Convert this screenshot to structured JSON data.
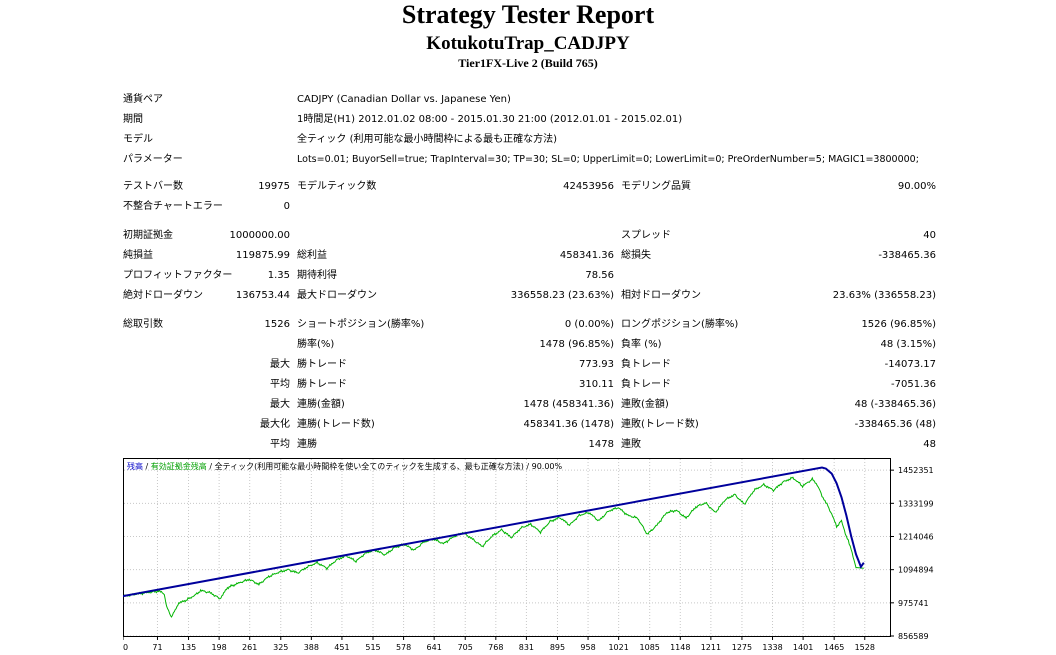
{
  "report": {
    "title": "Strategy Tester Report",
    "subtitle": "KotukotuTrap_CADJPY",
    "server": "Tier1FX-Live 2 (Build 765)"
  },
  "info": {
    "pair_label": "通貨ペア",
    "pair_value": "CADJPY (Canadian Dollar vs. Japanese Yen)",
    "period_label": "期間",
    "period_value": "1時間足(H1) 2012.01.02 08:00 - 2015.01.30 21:00 (2012.01.01 - 2015.02.01)",
    "model_label": "モデル",
    "model_value": "全ティック (利用可能な最小時間枠による最も正確な方法)",
    "params_label": "パラメーター",
    "params_value": "Lots=0.01; BuyorSell=true; TrapInterval=30; TP=30; SL=0; UpperLimit=0; LowerLimit=0; PreOrderNumber=5; MAGIC1=3800000;"
  },
  "bars": {
    "testbars_label": "テストバー数",
    "testbars_value": "19975",
    "ticks_label": "モデルティック数",
    "ticks_value": "42453956",
    "quality_label": "モデリング品質",
    "quality_value": "90.00%",
    "mismatch_label": "不整合チャートエラー",
    "mismatch_value": "0"
  },
  "stats": {
    "deposit_label": "初期証拠金",
    "deposit_value": "1000000.00",
    "spread_label": "スプレッド",
    "spread_value": "40",
    "net_label": "純損益",
    "net_value": "119875.99",
    "gross_profit_label": "総利益",
    "gross_profit_value": "458341.36",
    "gross_loss_label": "総損失",
    "gross_loss_value": "-338465.36",
    "pf_label": "プロフィットファクター",
    "pf_value": "1.35",
    "expected_label": "期待利得",
    "expected_value": "78.56",
    "abs_dd_label": "絶対ドローダウン",
    "abs_dd_value": "136753.44",
    "max_dd_label": "最大ドローダウン",
    "max_dd_value": "336558.23 (23.63%)",
    "rel_dd_label": "相対ドローダウン",
    "rel_dd_value": "23.63% (336558.23)"
  },
  "trades": {
    "total_label": "総取引数",
    "total_value": "1526",
    "short_label": "ショートポジション(勝率%)",
    "short_value": "0 (0.00%)",
    "long_label": "ロングポジション(勝率%)",
    "long_value": "1526 (96.85%)",
    "win_pct_label": "勝率(%)",
    "win_pct_value": "1478 (96.85%)",
    "loss_pct_label": "負率 (%)",
    "loss_pct_value": "48 (3.15%)",
    "largest_label": "最大",
    "largest_win_label": "勝トレード",
    "largest_win_value": "773.93",
    "largest_loss_label": "負トレード",
    "largest_loss_value": "-14073.17",
    "average_label": "平均",
    "avg_win_label": "勝トレード",
    "avg_win_value": "310.11",
    "avg_loss_label": "負トレード",
    "avg_loss_value": "-7051.36",
    "max_label": "最大",
    "max_cons_wins_label": "連勝(金額)",
    "max_cons_wins_value": "1478 (458341.36)",
    "max_cons_losses_label": "連敗(金額)",
    "max_cons_losses_value": "48 (-338465.36)",
    "maximal_label": "最大化",
    "maximal_wins_label": "連勝(トレード数)",
    "maximal_wins_value": "458341.36 (1478)",
    "maximal_losses_label": "連敗(トレード数)",
    "maximal_losses_value": "-338465.36 (48)",
    "avg_cons_label": "平均",
    "avg_cons_wins_label": "連勝",
    "avg_cons_wins_value": "1478",
    "avg_cons_losses_label": "連敗",
    "avg_cons_losses_value": "48"
  },
  "chart_data": {
    "type": "line",
    "legend_balance": "残高",
    "legend_sep1": " / ",
    "legend_equity": "有効証拠金残高",
    "legend_rest": " / 全ティック(利用可能な最小時間枠を使い全てのティックを生成する、最も正確な方法) / 90.00%",
    "colors": {
      "balance": "#00009C",
      "equity": "#00B400",
      "legend_balance": "#0000C8",
      "legend_equity": "#00A000",
      "grid": "#c8c8c8"
    },
    "x_ticks": [
      "0",
      "71",
      "135",
      "198",
      "261",
      "325",
      "388",
      "451",
      "515",
      "578",
      "641",
      "705",
      "768",
      "831",
      "895",
      "958",
      "1021",
      "1085",
      "1148",
      "1211",
      "1275",
      "1338",
      "1401",
      "1465",
      "1528"
    ],
    "y_ticks": [
      "1452351",
      "1333199",
      "1214046",
      "1094894",
      "975741",
      "856589"
    ],
    "xlim": [
      0,
      1580
    ],
    "ylim": [
      856589,
      1496000
    ],
    "grid": true,
    "series": [
      {
        "role": "balance",
        "x": [
          0,
          1440,
          1448,
          1460,
          1470,
          1480,
          1490,
          1500,
          1510,
          1520,
          1526
        ],
        "y": [
          1000000,
          1462000,
          1458000,
          1440000,
          1405000,
          1355000,
          1290000,
          1215000,
          1150000,
          1105000,
          1119876
        ]
      },
      {
        "role": "equity",
        "x": [
          0,
          40,
          75,
          85,
          90,
          100,
          115,
          130,
          150,
          160,
          180,
          200,
          215,
          240,
          260,
          280,
          300,
          320,
          340,
          360,
          380,
          400,
          420,
          440,
          460,
          480,
          500,
          520,
          540,
          560,
          580,
          600,
          620,
          640,
          660,
          680,
          700,
          720,
          740,
          760,
          780,
          800,
          820,
          840,
          860,
          880,
          900,
          920,
          940,
          960,
          980,
          1000,
          1020,
          1040,
          1060,
          1080,
          1100,
          1120,
          1140,
          1160,
          1180,
          1200,
          1220,
          1240,
          1260,
          1280,
          1300,
          1320,
          1340,
          1360,
          1380,
          1400,
          1420,
          1430,
          1440,
          1450,
          1460,
          1470,
          1480,
          1490,
          1500,
          1510,
          1515,
          1520,
          1526
        ],
        "y": [
          1000000,
          1010000,
          1018000,
          1008000,
          960000,
          925000,
          975000,
          985000,
          1005000,
          1020000,
          1012000,
          990000,
          1030000,
          1048000,
          1060000,
          1042000,
          1070000,
          1085000,
          1095000,
          1083000,
          1105000,
          1120000,
          1100000,
          1130000,
          1145000,
          1125000,
          1155000,
          1165000,
          1148000,
          1175000,
          1185000,
          1165000,
          1195000,
          1205000,
          1188000,
          1212000,
          1228000,
          1205000,
          1178000,
          1215000,
          1238000,
          1210000,
          1245000,
          1258000,
          1230000,
          1268000,
          1282000,
          1255000,
          1290000,
          1300000,
          1270000,
          1305000,
          1318000,
          1290000,
          1280000,
          1222000,
          1255000,
          1300000,
          1308000,
          1280000,
          1320000,
          1335000,
          1300000,
          1345000,
          1365000,
          1330000,
          1380000,
          1400000,
          1380000,
          1410000,
          1425000,
          1395000,
          1420000,
          1400000,
          1360000,
          1330000,
          1295000,
          1250000,
          1270000,
          1215000,
          1170000,
          1100000,
          1102000,
          1101000,
          1100000
        ]
      }
    ]
  }
}
